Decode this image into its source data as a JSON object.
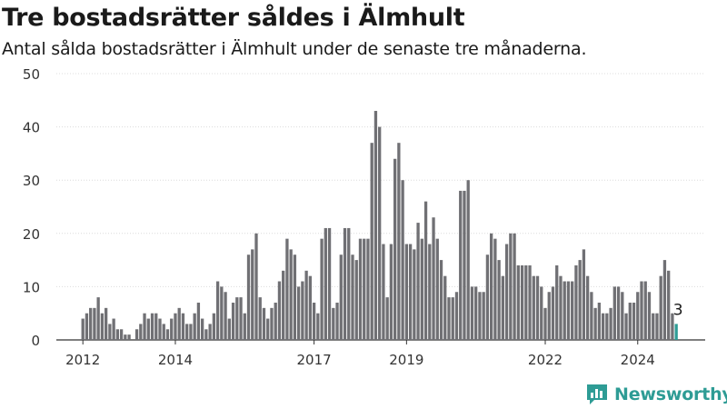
{
  "header": {
    "title": "Tre bostadsrätter såldes i Älmhult",
    "subtitle": "Antal sålda bostadsrätter i Älmhult under de senaste tre månaderna."
  },
  "brand": {
    "name": "Newsworthy",
    "color": "#2e9c95"
  },
  "chart_data": {
    "type": "bar",
    "title": "Tre bostadsrätter såldes i Älmhult",
    "subtitle": "Antal sålda bostadsrätter i Älmhult under de senaste tre månaderna.",
    "x_start": "2012-01",
    "x_step": "1 month",
    "x_ticks": [
      "2012",
      "2014",
      "2017",
      "2019",
      "2022",
      "2024"
    ],
    "y_ticks": [
      "0",
      "10",
      "20",
      "30",
      "40",
      "50"
    ],
    "ylim": [
      0,
      50
    ],
    "bar_color": "#707074",
    "highlight_color": "#2e9c95",
    "values": [
      4,
      5,
      6,
      6,
      8,
      5,
      6,
      3,
      4,
      2,
      2,
      1,
      1,
      0,
      2,
      3,
      5,
      4,
      5,
      5,
      4,
      3,
      2,
      4,
      5,
      6,
      5,
      3,
      3,
      5,
      7,
      4,
      2,
      3,
      5,
      11,
      10,
      9,
      4,
      7,
      8,
      8,
      5,
      16,
      17,
      20,
      8,
      6,
      4,
      6,
      7,
      11,
      13,
      19,
      17,
      16,
      10,
      11,
      13,
      12,
      7,
      5,
      19,
      21,
      21,
      6,
      7,
      16,
      21,
      21,
      16,
      15,
      19,
      19,
      19,
      37,
      43,
      40,
      18,
      8,
      18,
      34,
      37,
      30,
      18,
      18,
      17,
      22,
      19,
      26,
      18,
      23,
      19,
      15,
      12,
      8,
      8,
      9,
      28,
      28,
      30,
      10,
      10,
      9,
      9,
      16,
      20,
      19,
      15,
      12,
      18,
      20,
      20,
      14,
      14,
      14,
      14,
      12,
      12,
      10,
      6,
      9,
      10,
      14,
      12,
      11,
      11,
      11,
      14,
      15,
      17,
      12,
      9,
      6,
      7,
      5,
      5,
      6,
      10,
      10,
      9,
      5,
      7,
      7,
      9,
      11,
      11,
      9,
      5,
      5,
      12,
      15,
      13,
      5,
      3
    ],
    "highlight_label": "3"
  }
}
